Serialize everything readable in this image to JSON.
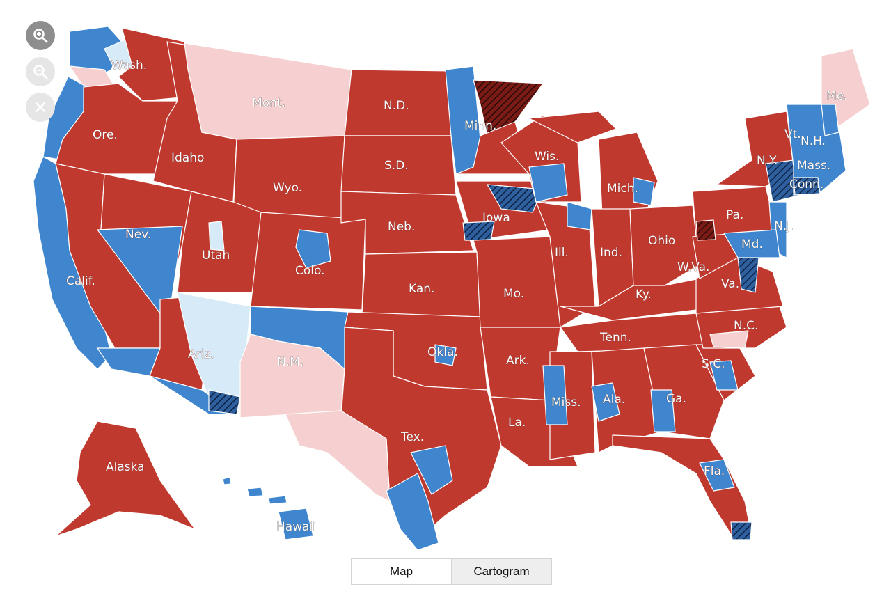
{
  "colors": {
    "rep": "#c0392f",
    "rep_light": "#f6d0d0",
    "dem": "#3f86cf",
    "dem_light": "#d6eaf8",
    "rep_flip": "#7a1b16",
    "dem_flip": "#1c3f73",
    "border": "#ffffff"
  },
  "zoom_controls": {
    "zoom_in_icon": "zoom-in-icon",
    "zoom_out_icon": "zoom-out-icon",
    "reset_icon": "close-icon"
  },
  "state_labels": {
    "wash": "Wash.",
    "ore": "Ore.",
    "calif": "Calif.",
    "nev": "Nev.",
    "idaho": "Idaho",
    "mont": "Mont.",
    "wyo": "Wyo.",
    "utah": "Utah",
    "colo": "Colo.",
    "ariz": "Ariz.",
    "nm": "N.M.",
    "nd": "N.D.",
    "sd": "S.D.",
    "neb": "Neb.",
    "kan": "Kan.",
    "okla": "Okla.",
    "tex": "Tex.",
    "minn": "Minn.",
    "iowa": "Iowa",
    "mo": "Mo.",
    "ark": "Ark.",
    "la": "La.",
    "wis": "Wis.",
    "ill": "Ill.",
    "mich": "Mich.",
    "ind": "Ind.",
    "ohio": "Ohio",
    "ky": "Ky.",
    "tenn": "Tenn.",
    "miss": "Miss.",
    "ala": "Ala.",
    "ga": "Ga.",
    "fla": "Fla.",
    "sc": "S.C.",
    "nc": "N.C.",
    "va": "Va.",
    "wva": "W.Va.",
    "pa": "Pa.",
    "ny": "N.Y.",
    "md": "Md.",
    "nj": "N.J.",
    "conn": "Conn.",
    "mass": "Mass.",
    "vt": "Vt.",
    "nh": "N.H.",
    "me": "Me.",
    "alaska": "Alaska",
    "hawaii": "Hawaii"
  },
  "view_toggle": {
    "map_label": "Map",
    "cartogram_label": "Cartogram",
    "selected": "Map"
  }
}
